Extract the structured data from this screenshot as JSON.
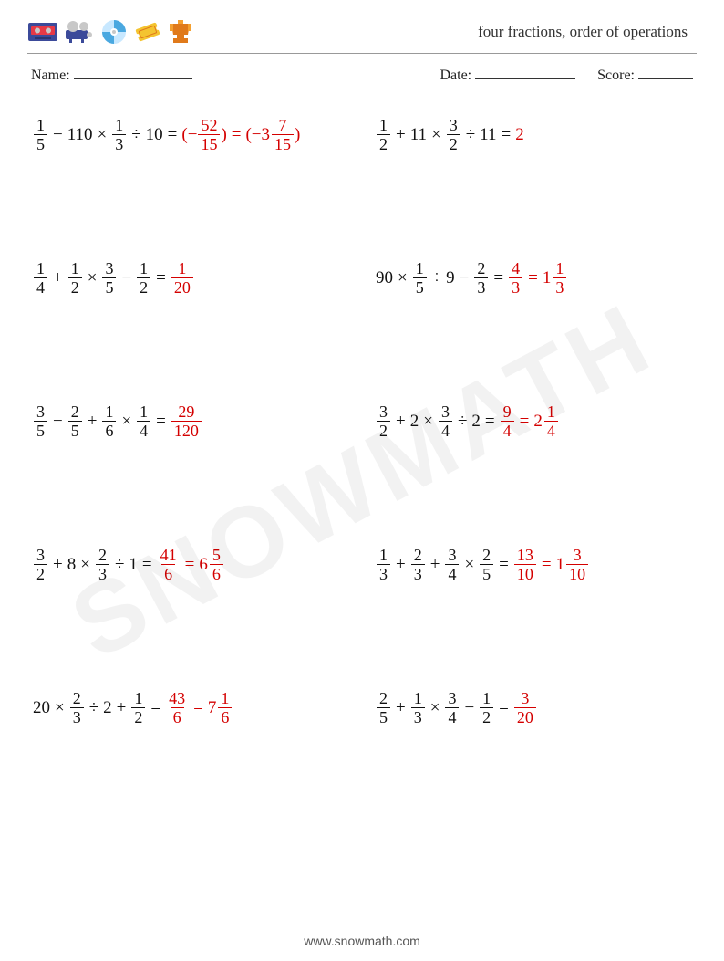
{
  "title": "four fractions, order of operations",
  "meta": {
    "name_label": "Name:",
    "date_label": "Date:",
    "score_label": "Score:"
  },
  "colors": {
    "text": "#111111",
    "answer": "#d40000",
    "divider": "#999999",
    "watermark": "rgba(0,0,0,0.05)",
    "background": "#ffffff"
  },
  "typography": {
    "title_fontsize": 17,
    "meta_fontsize": 16,
    "problem_fontsize": 20,
    "frac_fontsize": 18,
    "footer_fontsize": 14
  },
  "icons": [
    {
      "name": "cassette-icon",
      "label": "cassette",
      "colors": [
        "#3b4a9a",
        "#e63946",
        "#c8c8c8"
      ]
    },
    {
      "name": "projector-icon",
      "label": "projector",
      "colors": [
        "#3b4a9a",
        "#c8c8c8"
      ]
    },
    {
      "name": "cd-icon",
      "label": "cd",
      "colors": [
        "#4aa8e0",
        "#c8e8ff",
        "#ffffff"
      ]
    },
    {
      "name": "ticket-icon",
      "label": "ticket",
      "colors": [
        "#f4c430",
        "#e07a1b"
      ]
    },
    {
      "name": "trophy-icon",
      "label": "trophy",
      "colors": [
        "#e07a1b",
        "#f4a030"
      ]
    }
  ],
  "problems": [
    {
      "terms": [
        {
          "t": "frac",
          "n": "1",
          "d": "5"
        },
        {
          "t": "op",
          "v": "−"
        },
        {
          "t": "whole",
          "v": "110"
        },
        {
          "t": "op",
          "v": "×"
        },
        {
          "t": "frac",
          "n": "1",
          "d": "3"
        },
        {
          "t": "op",
          "v": "÷"
        },
        {
          "t": "whole",
          "v": "10"
        },
        {
          "t": "op",
          "v": "="
        },
        {
          "t": "ans_open"
        },
        {
          "t": "paren",
          "v": "(−"
        },
        {
          "t": "frac",
          "n": "52",
          "d": "15"
        },
        {
          "t": "paren",
          "v": ")"
        },
        {
          "t": "op",
          "v": "="
        },
        {
          "t": "paren",
          "v": "(−"
        },
        {
          "t": "mixed",
          "w": "3",
          "n": "7",
          "d": "15"
        },
        {
          "t": "paren",
          "v": ")"
        },
        {
          "t": "ans_close"
        }
      ]
    },
    {
      "terms": [
        {
          "t": "frac",
          "n": "1",
          "d": "2"
        },
        {
          "t": "op",
          "v": "+"
        },
        {
          "t": "whole",
          "v": "11"
        },
        {
          "t": "op",
          "v": "×"
        },
        {
          "t": "frac",
          "n": "3",
          "d": "2"
        },
        {
          "t": "op",
          "v": "÷"
        },
        {
          "t": "whole",
          "v": "11"
        },
        {
          "t": "op",
          "v": "="
        },
        {
          "t": "ans_open"
        },
        {
          "t": "whole",
          "v": "2"
        },
        {
          "t": "ans_close"
        }
      ]
    },
    {
      "terms": [
        {
          "t": "frac",
          "n": "1",
          "d": "4"
        },
        {
          "t": "op",
          "v": "+"
        },
        {
          "t": "frac",
          "n": "1",
          "d": "2"
        },
        {
          "t": "op",
          "v": "×"
        },
        {
          "t": "frac",
          "n": "3",
          "d": "5"
        },
        {
          "t": "op",
          "v": "−"
        },
        {
          "t": "frac",
          "n": "1",
          "d": "2"
        },
        {
          "t": "op",
          "v": "="
        },
        {
          "t": "ans_open"
        },
        {
          "t": "frac",
          "n": "1",
          "d": "20"
        },
        {
          "t": "ans_close"
        }
      ]
    },
    {
      "terms": [
        {
          "t": "whole",
          "v": "90"
        },
        {
          "t": "op",
          "v": "×"
        },
        {
          "t": "frac",
          "n": "1",
          "d": "5"
        },
        {
          "t": "op",
          "v": "÷"
        },
        {
          "t": "whole",
          "v": "9"
        },
        {
          "t": "op",
          "v": "−"
        },
        {
          "t": "frac",
          "n": "2",
          "d": "3"
        },
        {
          "t": "op",
          "v": "="
        },
        {
          "t": "ans_open"
        },
        {
          "t": "frac",
          "n": "4",
          "d": "3"
        },
        {
          "t": "op",
          "v": "="
        },
        {
          "t": "mixed",
          "w": "1",
          "n": "1",
          "d": "3"
        },
        {
          "t": "ans_close"
        }
      ]
    },
    {
      "terms": [
        {
          "t": "frac",
          "n": "3",
          "d": "5"
        },
        {
          "t": "op",
          "v": "−"
        },
        {
          "t": "frac",
          "n": "2",
          "d": "5"
        },
        {
          "t": "op",
          "v": "+"
        },
        {
          "t": "frac",
          "n": "1",
          "d": "6"
        },
        {
          "t": "op",
          "v": "×"
        },
        {
          "t": "frac",
          "n": "1",
          "d": "4"
        },
        {
          "t": "op",
          "v": "="
        },
        {
          "t": "ans_open"
        },
        {
          "t": "frac",
          "n": "29",
          "d": "120"
        },
        {
          "t": "ans_close"
        }
      ]
    },
    {
      "terms": [
        {
          "t": "frac",
          "n": "3",
          "d": "2"
        },
        {
          "t": "op",
          "v": "+"
        },
        {
          "t": "whole",
          "v": "2"
        },
        {
          "t": "op",
          "v": "×"
        },
        {
          "t": "frac",
          "n": "3",
          "d": "4"
        },
        {
          "t": "op",
          "v": "÷"
        },
        {
          "t": "whole",
          "v": "2"
        },
        {
          "t": "op",
          "v": "="
        },
        {
          "t": "ans_open"
        },
        {
          "t": "frac",
          "n": "9",
          "d": "4"
        },
        {
          "t": "op",
          "v": "="
        },
        {
          "t": "mixed",
          "w": "2",
          "n": "1",
          "d": "4"
        },
        {
          "t": "ans_close"
        }
      ]
    },
    {
      "terms": [
        {
          "t": "frac",
          "n": "3",
          "d": "2"
        },
        {
          "t": "op",
          "v": "+"
        },
        {
          "t": "whole",
          "v": "8"
        },
        {
          "t": "op",
          "v": "×"
        },
        {
          "t": "frac",
          "n": "2",
          "d": "3"
        },
        {
          "t": "op",
          "v": "÷"
        },
        {
          "t": "whole",
          "v": "1"
        },
        {
          "t": "op",
          "v": "="
        },
        {
          "t": "ans_open"
        },
        {
          "t": "frac",
          "n": "41",
          "d": "6"
        },
        {
          "t": "op",
          "v": "="
        },
        {
          "t": "mixed",
          "w": "6",
          "n": "5",
          "d": "6"
        },
        {
          "t": "ans_close"
        }
      ]
    },
    {
      "terms": [
        {
          "t": "frac",
          "n": "1",
          "d": "3"
        },
        {
          "t": "op",
          "v": "+"
        },
        {
          "t": "frac",
          "n": "2",
          "d": "3"
        },
        {
          "t": "op",
          "v": "+"
        },
        {
          "t": "frac",
          "n": "3",
          "d": "4"
        },
        {
          "t": "op",
          "v": "×"
        },
        {
          "t": "frac",
          "n": "2",
          "d": "5"
        },
        {
          "t": "op",
          "v": "="
        },
        {
          "t": "ans_open"
        },
        {
          "t": "frac",
          "n": "13",
          "d": "10"
        },
        {
          "t": "op",
          "v": "="
        },
        {
          "t": "mixed",
          "w": "1",
          "n": "3",
          "d": "10"
        },
        {
          "t": "ans_close"
        }
      ]
    },
    {
      "terms": [
        {
          "t": "whole",
          "v": "20"
        },
        {
          "t": "op",
          "v": "×"
        },
        {
          "t": "frac",
          "n": "2",
          "d": "3"
        },
        {
          "t": "op",
          "v": "÷"
        },
        {
          "t": "whole",
          "v": "2"
        },
        {
          "t": "op",
          "v": "+"
        },
        {
          "t": "frac",
          "n": "1",
          "d": "2"
        },
        {
          "t": "op",
          "v": "="
        },
        {
          "t": "ans_open"
        },
        {
          "t": "frac",
          "n": "43",
          "d": "6"
        },
        {
          "t": "op",
          "v": "="
        },
        {
          "t": "mixed",
          "w": "7",
          "n": "1",
          "d": "6"
        },
        {
          "t": "ans_close"
        }
      ]
    },
    {
      "terms": [
        {
          "t": "frac",
          "n": "2",
          "d": "5"
        },
        {
          "t": "op",
          "v": "+"
        },
        {
          "t": "frac",
          "n": "1",
          "d": "3"
        },
        {
          "t": "op",
          "v": "×"
        },
        {
          "t": "frac",
          "n": "3",
          "d": "4"
        },
        {
          "t": "op",
          "v": "−"
        },
        {
          "t": "frac",
          "n": "1",
          "d": "2"
        },
        {
          "t": "op",
          "v": "="
        },
        {
          "t": "ans_open"
        },
        {
          "t": "frac",
          "n": "3",
          "d": "20"
        },
        {
          "t": "ans_close"
        }
      ]
    }
  ],
  "watermark": "SNOWMATH",
  "footer": "www.snowmath.com"
}
